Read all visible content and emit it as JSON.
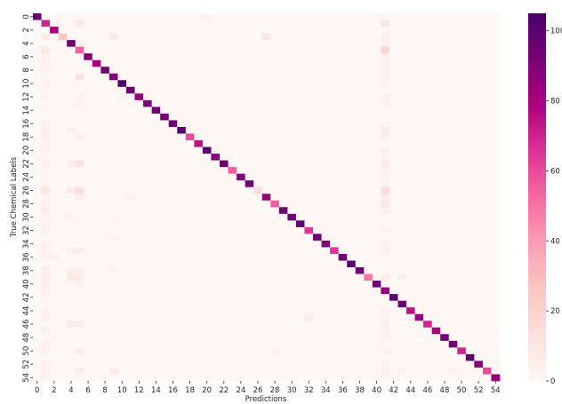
{
  "chart_data": {
    "type": "heatmap",
    "xlabel": "Predictions",
    "ylabel": "True Chemical Labels",
    "n_classes": 55,
    "x_tick_labels": [
      "0",
      "2",
      "4",
      "6",
      "8",
      "10",
      "12",
      "14",
      "16",
      "18",
      "20",
      "22",
      "24",
      "26",
      "28",
      "30",
      "32",
      "34",
      "36",
      "38",
      "40",
      "42",
      "44",
      "46",
      "48",
      "50",
      "52",
      "54"
    ],
    "y_tick_labels": [
      "0",
      "2",
      "4",
      "6",
      "8",
      "10",
      "12",
      "14",
      "16",
      "18",
      "20",
      "22",
      "24",
      "26",
      "28",
      "30",
      "32",
      "34",
      "36",
      "38",
      "40",
      "42",
      "44",
      "46",
      "48",
      "50",
      "52",
      "54"
    ],
    "x_tick_values": [
      0,
      2,
      4,
      6,
      8,
      10,
      12,
      14,
      16,
      18,
      20,
      22,
      24,
      26,
      28,
      30,
      32,
      34,
      36,
      38,
      40,
      42,
      44,
      46,
      48,
      50,
      52,
      54
    ],
    "y_tick_values": [
      0,
      2,
      4,
      6,
      8,
      10,
      12,
      14,
      16,
      18,
      20,
      22,
      24,
      26,
      28,
      30,
      32,
      34,
      36,
      38,
      40,
      42,
      44,
      46,
      48,
      50,
      52,
      54
    ],
    "colorbar": {
      "min": 0,
      "max": 105,
      "tick_values": [
        0,
        20,
        40,
        60,
        80,
        100
      ],
      "tick_labels": [
        "0",
        "20",
        "40",
        "60",
        "80",
        "100"
      ],
      "colormap": [
        "#fff7f3",
        "#fde0dd",
        "#fcc5c0",
        "#fa9fb5",
        "#f768a1",
        "#dd3497",
        "#ae017e",
        "#7a0177",
        "#49006a"
      ]
    },
    "diagonal_values": [
      95,
      70,
      80,
      25,
      95,
      55,
      90,
      80,
      95,
      90,
      103,
      95,
      85,
      90,
      95,
      95,
      95,
      100,
      60,
      75,
      100,
      90,
      95,
      55,
      90,
      95,
      15,
      85,
      55,
      95,
      95,
      100,
      65,
      95,
      90,
      65,
      95,
      100,
      95,
      50,
      95,
      85,
      100,
      95,
      75,
      85,
      70,
      80,
      95,
      95,
      70,
      100,
      90,
      60,
      85
    ],
    "off_diagonal": [
      [
        0,
        20,
        3
      ],
      [
        1,
        5,
        8
      ],
      [
        1,
        41,
        10
      ],
      [
        3,
        1,
        5
      ],
      [
        3,
        9,
        8
      ],
      [
        3,
        27,
        10
      ],
      [
        3,
        41,
        5
      ],
      [
        4,
        5,
        3
      ],
      [
        4,
        41,
        4
      ],
      [
        5,
        1,
        10
      ],
      [
        5,
        41,
        18
      ],
      [
        6,
        1,
        4
      ],
      [
        6,
        41,
        4
      ],
      [
        7,
        1,
        3
      ],
      [
        7,
        41,
        3
      ],
      [
        8,
        1,
        3
      ],
      [
        8,
        41,
        3
      ],
      [
        9,
        5,
        12
      ],
      [
        9,
        41,
        4
      ],
      [
        10,
        1,
        3
      ],
      [
        10,
        41,
        3
      ],
      [
        11,
        1,
        2
      ],
      [
        12,
        1,
        2
      ],
      [
        12,
        5,
        3
      ],
      [
        12,
        41,
        3
      ],
      [
        13,
        5,
        4
      ],
      [
        13,
        41,
        4
      ],
      [
        14,
        1,
        2
      ],
      [
        16,
        1,
        3
      ],
      [
        16,
        41,
        3
      ],
      [
        17,
        1,
        5
      ],
      [
        17,
        4,
        4
      ],
      [
        17,
        41,
        6
      ],
      [
        18,
        1,
        5
      ],
      [
        18,
        5,
        3
      ],
      [
        18,
        41,
        4
      ],
      [
        19,
        1,
        3
      ],
      [
        20,
        1,
        3
      ],
      [
        20,
        41,
        5
      ],
      [
        21,
        1,
        2
      ],
      [
        21,
        41,
        2
      ],
      [
        22,
        1,
        3
      ],
      [
        22,
        4,
        5
      ],
      [
        22,
        5,
        12
      ],
      [
        22,
        41,
        8
      ],
      [
        23,
        1,
        2
      ],
      [
        23,
        41,
        3
      ],
      [
        24,
        41,
        2
      ],
      [
        25,
        1,
        2
      ],
      [
        25,
        41,
        3
      ],
      [
        26,
        1,
        10
      ],
      [
        26,
        4,
        8
      ],
      [
        26,
        5,
        14
      ],
      [
        26,
        41,
        15
      ],
      [
        27,
        1,
        3
      ],
      [
        27,
        5,
        5
      ],
      [
        27,
        11,
        3
      ],
      [
        27,
        41,
        6
      ],
      [
        28,
        1,
        4
      ],
      [
        28,
        41,
        10
      ],
      [
        29,
        1,
        5
      ],
      [
        29,
        41,
        4
      ],
      [
        30,
        1,
        2
      ],
      [
        30,
        4,
        3
      ],
      [
        31,
        1,
        3
      ],
      [
        31,
        9,
        2
      ],
      [
        32,
        1,
        4
      ],
      [
        32,
        41,
        3
      ],
      [
        33,
        9,
        3
      ],
      [
        34,
        1,
        3
      ],
      [
        34,
        41,
        3
      ],
      [
        35,
        1,
        4
      ],
      [
        35,
        4,
        4
      ],
      [
        35,
        5,
        5
      ],
      [
        35,
        41,
        4
      ],
      [
        36,
        1,
        3
      ],
      [
        36,
        2,
        3
      ],
      [
        38,
        1,
        5
      ],
      [
        38,
        4,
        5
      ],
      [
        38,
        5,
        4
      ],
      [
        38,
        9,
        2
      ],
      [
        39,
        1,
        6
      ],
      [
        39,
        4,
        8
      ],
      [
        39,
        5,
        6
      ],
      [
        39,
        41,
        6
      ],
      [
        39,
        43,
        5
      ],
      [
        40,
        1,
        5
      ],
      [
        40,
        5,
        4
      ],
      [
        41,
        1,
        3
      ],
      [
        42,
        1,
        3
      ],
      [
        44,
        1,
        3
      ],
      [
        44,
        41,
        3
      ],
      [
        45,
        1,
        4
      ],
      [
        45,
        41,
        4
      ],
      [
        45,
        32,
        6
      ],
      [
        46,
        4,
        7
      ],
      [
        46,
        5,
        5
      ],
      [
        46,
        41,
        5
      ],
      [
        47,
        1,
        4
      ],
      [
        47,
        41,
        3
      ],
      [
        48,
        41,
        3
      ],
      [
        49,
        1,
        5
      ],
      [
        50,
        1,
        3
      ],
      [
        50,
        5,
        6
      ],
      [
        50,
        28,
        3
      ],
      [
        50,
        41,
        3
      ],
      [
        52,
        1,
        3
      ],
      [
        52,
        41,
        3
      ],
      [
        53,
        1,
        4
      ],
      [
        53,
        5,
        6
      ],
      [
        53,
        9,
        7
      ],
      [
        53,
        41,
        5
      ],
      [
        53,
        43,
        4
      ],
      [
        53,
        49,
        3
      ],
      [
        54,
        1,
        2
      ],
      [
        54,
        41,
        3
      ]
    ]
  }
}
